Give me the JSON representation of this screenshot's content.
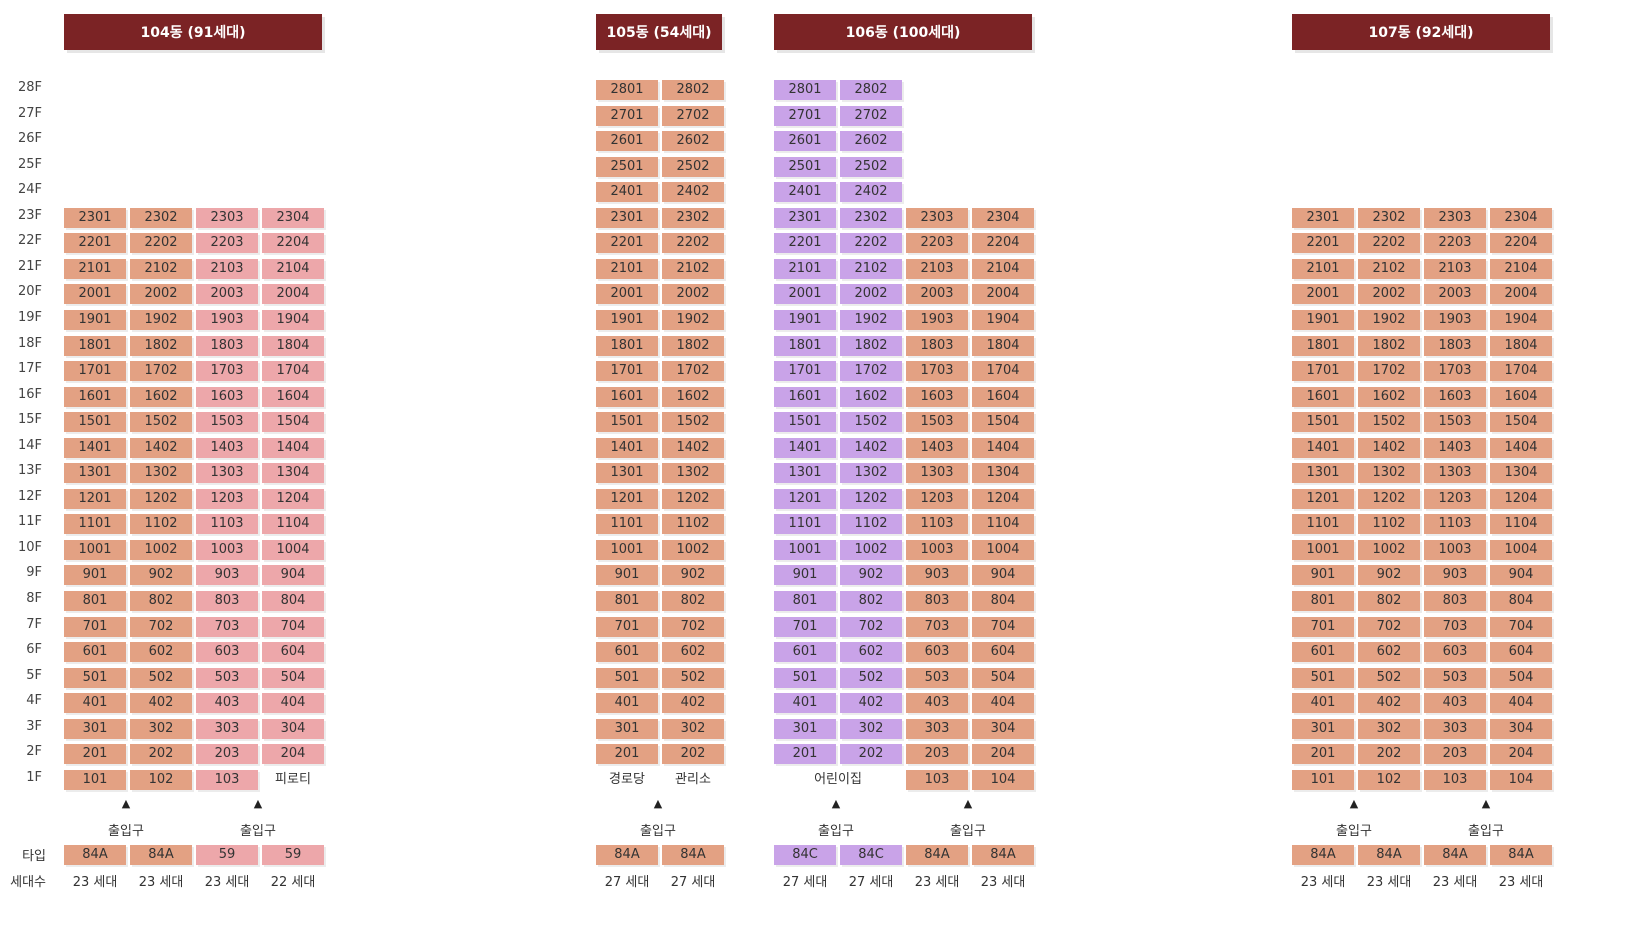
{
  "colors": {
    "header_bg": "#7b2325",
    "type_84A": "#e3a183",
    "type_59": "#eda7aa",
    "type_84C": "#c9a3e8"
  },
  "floors": [
    "28F",
    "27F",
    "26F",
    "25F",
    "24F",
    "23F",
    "22F",
    "21F",
    "20F",
    "19F",
    "18F",
    "17F",
    "16F",
    "15F",
    "14F",
    "13F",
    "12F",
    "11F",
    "10F",
    "9F",
    "8F",
    "7F",
    "6F",
    "5F",
    "4F",
    "3F",
    "2F",
    "1F"
  ],
  "labels": {
    "type": "타입",
    "households": "세대수",
    "entrance": "출입구"
  },
  "buildings": [
    {
      "id": "104",
      "title": "104동 (91세대)",
      "columns": [
        {
          "line": "01",
          "type": "84A",
          "count": "23 세대",
          "top": 23,
          "first_floor": "101"
        },
        {
          "line": "02",
          "type": "84A",
          "count": "23 세대",
          "top": 23,
          "first_floor": "102"
        },
        {
          "line": "03",
          "type": "59",
          "count": "23 세대",
          "top": 23,
          "first_floor": "103"
        },
        {
          "line": "04",
          "type": "59",
          "count": "22 세대",
          "top": 23,
          "first_floor_text": "피로티"
        }
      ],
      "entrances": [
        "출입구",
        "출입구"
      ]
    },
    {
      "id": "105",
      "title": "105동 (54세대)",
      "columns": [
        {
          "line": "01",
          "type": "84A",
          "count": "27 세대",
          "top": 28,
          "first_floor_text": "경로당"
        },
        {
          "line": "02",
          "type": "84A",
          "count": "27 세대",
          "top": 28,
          "first_floor_text": "관리소"
        }
      ],
      "entrances": [
        "출입구"
      ]
    },
    {
      "id": "106",
      "title": "106동 (100세대)",
      "columns": [
        {
          "line": "01",
          "type": "84C",
          "count": "27 세대",
          "top": 28
        },
        {
          "line": "02",
          "type": "84C",
          "count": "27 세대",
          "top": 28
        },
        {
          "line": "03",
          "type": "84A",
          "count": "23 세대",
          "top": 23,
          "first_floor": "103"
        },
        {
          "line": "04",
          "type": "84A",
          "count": "23 세대",
          "top": 23,
          "first_floor": "104"
        }
      ],
      "first_floor_shared_text": "어린이집",
      "entrances": [
        "출입구",
        "출입구"
      ]
    },
    {
      "id": "107",
      "title": "107동 (92세대)",
      "columns": [
        {
          "line": "01",
          "type": "84A",
          "count": "23 세대",
          "top": 23,
          "first_floor": "101"
        },
        {
          "line": "02",
          "type": "84A",
          "count": "23 세대",
          "top": 23,
          "first_floor": "102"
        },
        {
          "line": "03",
          "type": "84A",
          "count": "23 세대",
          "top": 23,
          "first_floor": "103"
        },
        {
          "line": "04",
          "type": "84A",
          "count": "23 세대",
          "top": 23,
          "first_floor": "104"
        }
      ],
      "entrances": [
        "출입구",
        "출입구"
      ]
    }
  ]
}
